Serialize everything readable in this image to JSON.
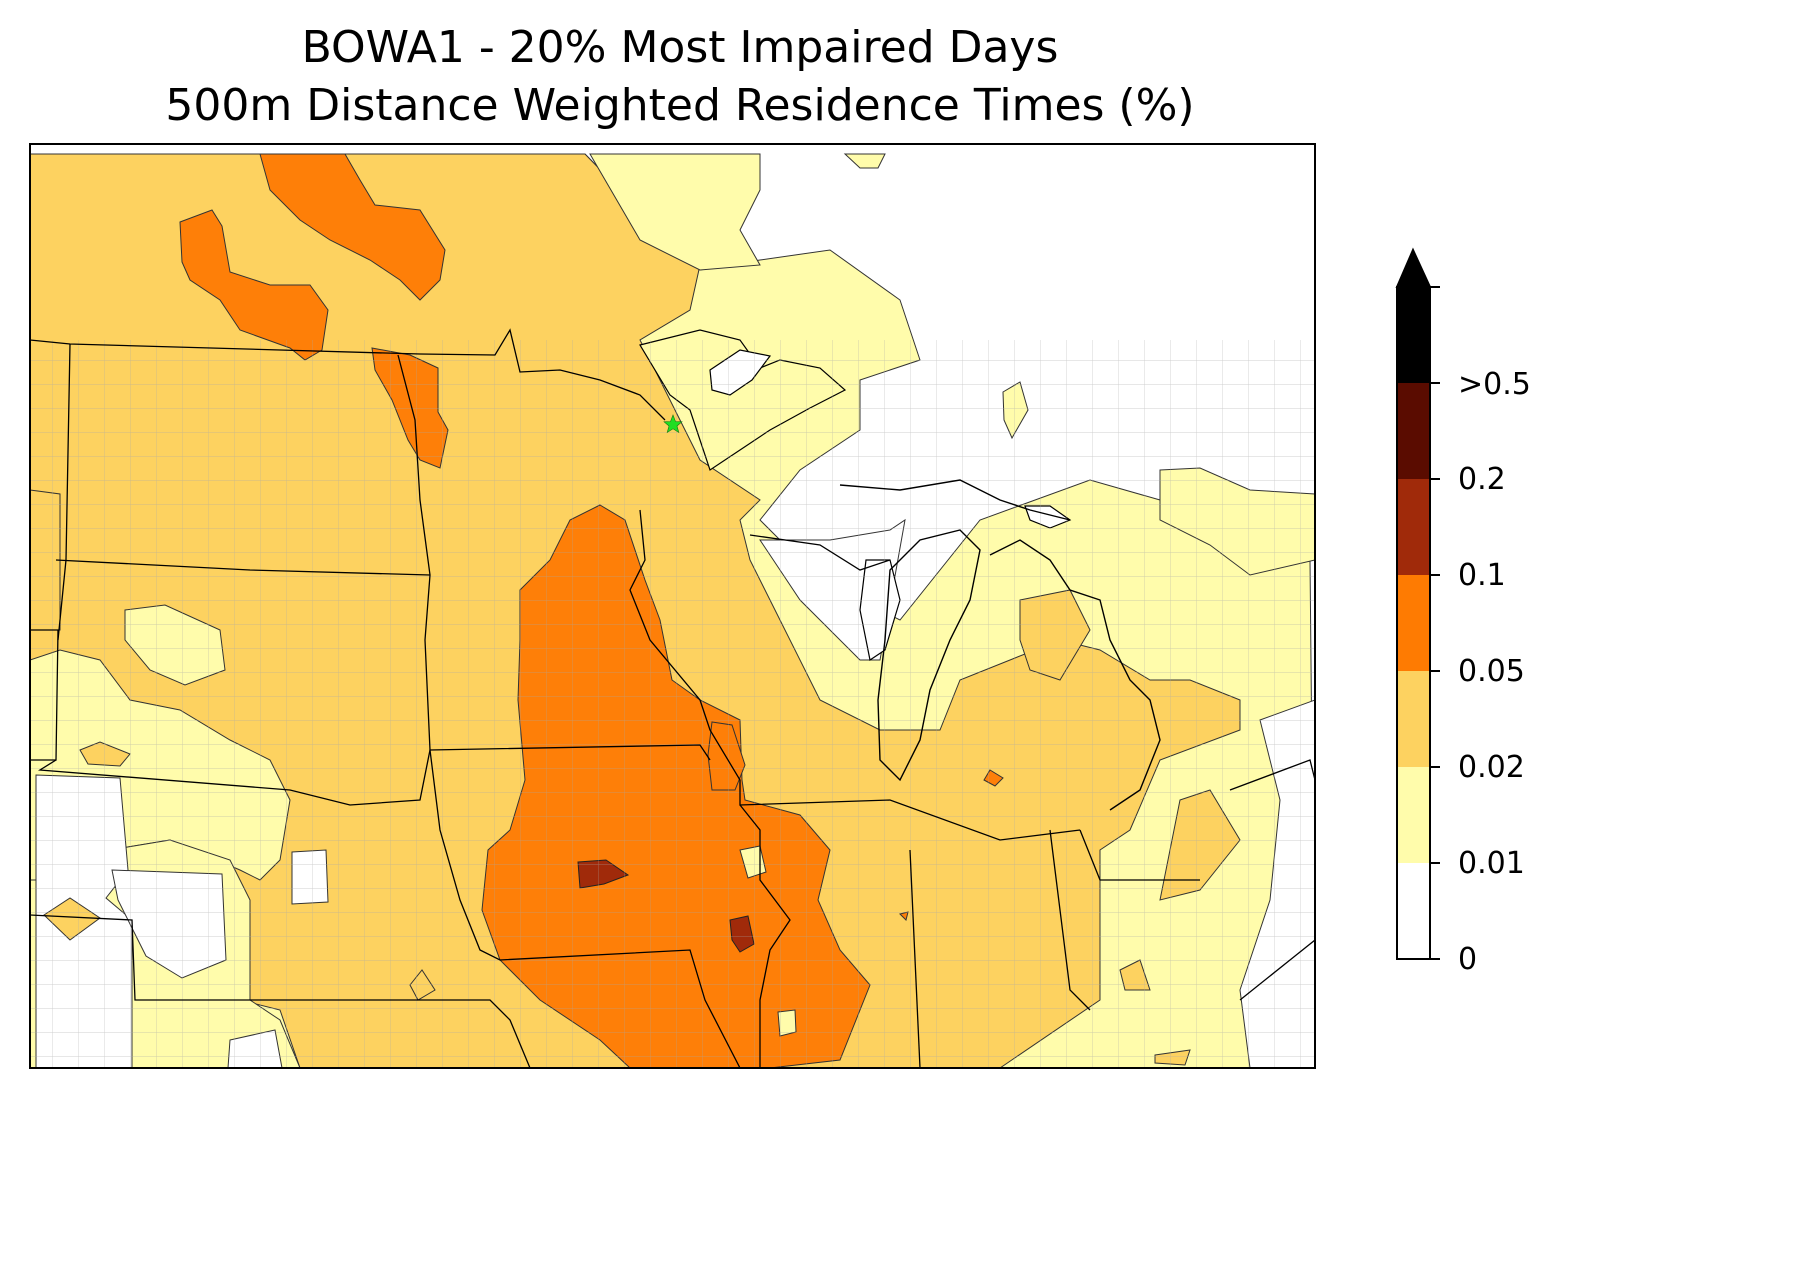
{
  "title_line1": "BOWA1 - 20% Most Impaired Days",
  "title_line2": "500m Distance Weighted Residence Times (%)",
  "site_marker": {
    "name": "BOWA1",
    "symbol": "star",
    "color": "#22dd22"
  },
  "colorbar": {
    "extend": "max",
    "ticks": [
      "0",
      "0.01",
      "0.02",
      "0.05",
      "0.1",
      "0.2",
      ">0.5"
    ],
    "levels": [
      {
        "from": "0",
        "to": "0.01",
        "color": "#ffffff"
      },
      {
        "from": "0.01",
        "to": "0.02",
        "color": "#fffcab"
      },
      {
        "from": "0.02",
        "to": "0.05",
        "color": "#fdd260"
      },
      {
        "from": "0.05",
        "to": "0.1",
        "color": "#fe8c1f"
      },
      {
        "from": "0.1",
        "to": "0.2",
        "color": "#fe7b02"
      },
      {
        "from": "0.2",
        "to": "0.5",
        "color": "#a02a0a"
      },
      {
        "from": "0.5",
        "to": "",
        "color": "#5a0c00"
      },
      {
        "from": "over",
        "to": "",
        "color": "#000000"
      }
    ]
  },
  "map_colors": {
    "background": "#ffffff",
    "state_border": "#000000",
    "county_border": "#a8a8a8"
  }
}
